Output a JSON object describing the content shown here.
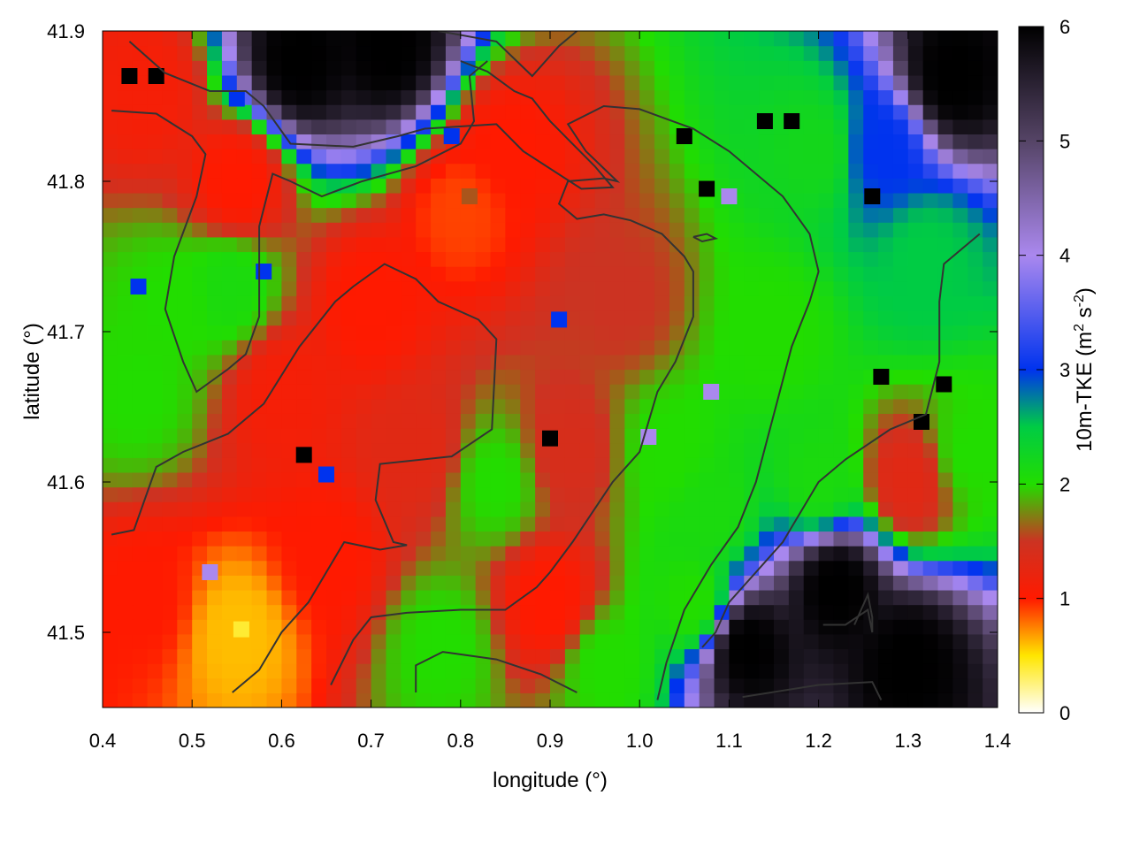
{
  "chart_data": {
    "type": "heatmap",
    "xlabel": "longitude (°)",
    "ylabel": "latitude (°)",
    "colorbar_label": "10m-TKE (m² s⁻²)",
    "colorbar_label_parts": {
      "prefix": "10m-TKE (m",
      "sup1": "2",
      "mid": " s",
      "sup2": "-2",
      "suffix": ")"
    },
    "xlim": [
      0.4,
      1.4
    ],
    "ylim": [
      41.45,
      41.9
    ],
    "zlim": [
      0,
      6
    ],
    "x_ticks": [
      "0.4",
      "0.5",
      "0.6",
      "0.7",
      "0.8",
      "0.9",
      "1.0",
      "1.1",
      "1.2",
      "1.3",
      "1.4"
    ],
    "y_ticks": [
      "41.5",
      "41.6",
      "41.7",
      "41.8",
      "41.9"
    ],
    "colorbar_ticks": [
      "0",
      "1",
      "2",
      "3",
      "4",
      "5",
      "6"
    ],
    "colormap": [
      {
        "value": 0,
        "color": "#ffffff"
      },
      {
        "value": 0.5,
        "color": "#ffe600"
      },
      {
        "value": 1.0,
        "color": "#ff1a00"
      },
      {
        "value": 1.5,
        "color": "#cc3322"
      },
      {
        "value": 2.0,
        "color": "#22dd00"
      },
      {
        "value": 2.5,
        "color": "#00cc44"
      },
      {
        "value": 3.0,
        "color": "#0033ee"
      },
      {
        "value": 4.0,
        "color": "#aa88ee"
      },
      {
        "value": 5.0,
        "color": "#554466"
      },
      {
        "value": 6.0,
        "color": "#000000"
      }
    ],
    "field_samples": [
      {
        "lon": 0.45,
        "lat": 41.86,
        "value": 1.1
      },
      {
        "lon": 0.55,
        "lat": 41.8,
        "value": 1.0
      },
      {
        "lon": 0.48,
        "lat": 41.72,
        "value": 2.0
      },
      {
        "lon": 0.54,
        "lat": 41.73,
        "value": 2.1
      },
      {
        "lon": 0.44,
        "lat": 41.66,
        "value": 2.0
      },
      {
        "lon": 0.6,
        "lat": 41.66,
        "value": 1.1
      },
      {
        "lon": 0.7,
        "lat": 41.72,
        "value": 1.0
      },
      {
        "lon": 0.8,
        "lat": 41.78,
        "value": 0.9
      },
      {
        "lon": 0.85,
        "lat": 41.82,
        "value": 1.0
      },
      {
        "lon": 0.75,
        "lat": 41.62,
        "value": 1.3
      },
      {
        "lon": 0.84,
        "lat": 41.6,
        "value": 2.0
      },
      {
        "lon": 0.92,
        "lat": 41.62,
        "value": 1.4
      },
      {
        "lon": 0.98,
        "lat": 41.72,
        "value": 1.5
      },
      {
        "lon": 1.03,
        "lat": 41.62,
        "value": 2.0
      },
      {
        "lon": 1.08,
        "lat": 41.58,
        "value": 2.1
      },
      {
        "lon": 1.15,
        "lat": 41.7,
        "value": 2.0
      },
      {
        "lon": 1.2,
        "lat": 41.82,
        "value": 2.2
      },
      {
        "lon": 1.27,
        "lat": 41.82,
        "value": 3.0
      },
      {
        "lon": 1.32,
        "lat": 41.75,
        "value": 2.5
      },
      {
        "lon": 1.35,
        "lat": 41.87,
        "value": 6.0
      },
      {
        "lon": 0.62,
        "lat": 41.88,
        "value": 6.0
      },
      {
        "lon": 0.72,
        "lat": 41.89,
        "value": 6.0
      },
      {
        "lon": 0.45,
        "lat": 41.52,
        "value": 1.0
      },
      {
        "lon": 0.55,
        "lat": 41.5,
        "value": 0.6
      },
      {
        "lon": 0.65,
        "lat": 41.55,
        "value": 1.0
      },
      {
        "lon": 0.78,
        "lat": 41.49,
        "value": 2.0
      },
      {
        "lon": 0.9,
        "lat": 41.52,
        "value": 1.0
      },
      {
        "lon": 0.96,
        "lat": 41.48,
        "value": 2.0
      },
      {
        "lon": 1.12,
        "lat": 41.49,
        "value": 6.0
      },
      {
        "lon": 1.22,
        "lat": 41.53,
        "value": 6.0
      },
      {
        "lon": 1.3,
        "lat": 41.48,
        "value": 6.0
      },
      {
        "lon": 1.3,
        "lat": 41.6,
        "value": 1.3
      },
      {
        "lon": 1.37,
        "lat": 41.62,
        "value": 2.0
      },
      {
        "lon": 1.2,
        "lat": 41.6,
        "value": 2.1
      },
      {
        "lon": 1.06,
        "lat": 41.52,
        "value": 2.0
      }
    ],
    "hotspots": [
      {
        "lon": 0.625,
        "lat": 41.618,
        "value": 6.0
      },
      {
        "lon": 0.9,
        "lat": 41.629,
        "value": 6.0
      },
      {
        "lon": 0.91,
        "lat": 41.708,
        "value": 3.0
      },
      {
        "lon": 1.075,
        "lat": 41.795,
        "value": 6.0
      },
      {
        "lon": 1.27,
        "lat": 41.67,
        "value": 6.0
      },
      {
        "lon": 1.315,
        "lat": 41.64,
        "value": 6.0
      },
      {
        "lon": 1.05,
        "lat": 41.83,
        "value": 6.0
      },
      {
        "lon": 1.34,
        "lat": 41.665,
        "value": 6.0
      },
      {
        "lon": 0.44,
        "lat": 41.73,
        "value": 3.0
      },
      {
        "lon": 0.58,
        "lat": 41.74,
        "value": 3.0
      },
      {
        "lon": 0.55,
        "lat": 41.855,
        "value": 3.0
      },
      {
        "lon": 0.79,
        "lat": 41.83,
        "value": 3.0
      },
      {
        "lon": 1.1,
        "lat": 41.79,
        "value": 4.0
      },
      {
        "lon": 1.08,
        "lat": 41.66,
        "value": 4.0
      },
      {
        "lon": 1.01,
        "lat": 41.63,
        "value": 4.0
      },
      {
        "lon": 0.52,
        "lat": 41.54,
        "value": 4.0
      },
      {
        "lon": 0.43,
        "lat": 41.87,
        "value": 6.0
      },
      {
        "lon": 0.46,
        "lat": 41.87,
        "value": 6.0
      },
      {
        "lon": 1.14,
        "lat": 41.84,
        "value": 6.0
      },
      {
        "lon": 1.17,
        "lat": 41.84,
        "value": 6.0
      },
      {
        "lon": 1.26,
        "lat": 41.79,
        "value": 6.0
      },
      {
        "lon": 0.555,
        "lat": 41.502,
        "value": 0.4
      },
      {
        "lon": 0.81,
        "lat": 41.79,
        "value": 1.6
      },
      {
        "lon": 0.65,
        "lat": 41.605,
        "value": 3.0
      }
    ],
    "contours": [
      [
        [
          0.41,
          41.565
        ],
        [
          0.435,
          41.568
        ],
        [
          0.46,
          41.61
        ],
        [
          0.49,
          41.62
        ],
        [
          0.54,
          41.632
        ],
        [
          0.58,
          41.652
        ],
        [
          0.62,
          41.69
        ],
        [
          0.66,
          41.72
        ],
        [
          0.68,
          41.73
        ],
        [
          0.715,
          41.745
        ],
        [
          0.75,
          41.735
        ],
        [
          0.775,
          41.72
        ],
        [
          0.82,
          41.708
        ],
        [
          0.84,
          41.695
        ],
        [
          0.835,
          41.635
        ],
        [
          0.79,
          41.617
        ],
        [
          0.71,
          41.612
        ],
        [
          0.705,
          41.588
        ],
        [
          0.725,
          41.56
        ],
        [
          0.74,
          41.558
        ],
        [
          0.71,
          41.555
        ],
        [
          0.67,
          41.56
        ],
        [
          0.63,
          41.52
        ],
        [
          0.6,
          41.5
        ],
        [
          0.575,
          41.475
        ],
        [
          0.545,
          41.46
        ]
      ],
      [
        [
          0.41,
          41.847
        ],
        [
          0.46,
          41.845
        ],
        [
          0.5,
          41.83
        ],
        [
          0.515,
          41.818
        ],
        [
          0.505,
          41.79
        ],
        [
          0.48,
          41.75
        ],
        [
          0.47,
          41.715
        ],
        [
          0.49,
          41.68
        ],
        [
          0.505,
          41.66
        ],
        [
          0.54,
          41.675
        ],
        [
          0.56,
          41.685
        ],
        [
          0.575,
          41.71
        ],
        [
          0.575,
          41.77
        ],
        [
          0.59,
          41.805
        ],
        [
          0.61,
          41.8
        ],
        [
          0.645,
          41.79
        ],
        [
          0.69,
          41.8
        ],
        [
          0.75,
          41.81
        ],
        [
          0.8,
          41.825
        ],
        [
          0.815,
          41.84
        ],
        [
          0.81,
          41.87
        ],
        [
          0.83,
          41.88
        ]
      ],
      [
        [
          0.43,
          41.893
        ],
        [
          0.47,
          41.872
        ],
        [
          0.52,
          41.86
        ],
        [
          0.56,
          41.86
        ],
        [
          0.58,
          41.85
        ],
        [
          0.61,
          41.825
        ],
        [
          0.68,
          41.823
        ],
        [
          0.73,
          41.83
        ],
        [
          0.76,
          41.835
        ],
        [
          0.84,
          41.838
        ],
        [
          0.87,
          41.82
        ],
        [
          0.935,
          41.795
        ],
        [
          0.97,
          41.796
        ],
        [
          0.95,
          41.81
        ],
        [
          0.92,
          41.828
        ],
        [
          0.9,
          41.84
        ],
        [
          0.88,
          41.855
        ],
        [
          0.86,
          41.86
        ],
        [
          0.83,
          41.873
        ],
        [
          0.8,
          41.88
        ]
      ],
      [
        [
          0.75,
          41.46
        ],
        [
          0.75,
          41.478
        ],
        [
          0.78,
          41.487
        ],
        [
          0.84,
          41.482
        ],
        [
          0.89,
          41.472
        ],
        [
          0.93,
          41.46
        ]
      ],
      [
        [
          0.655,
          41.465
        ],
        [
          0.68,
          41.495
        ],
        [
          0.7,
          41.51
        ],
        [
          0.74,
          41.513
        ],
        [
          0.8,
          41.515
        ],
        [
          0.85,
          41.515
        ],
        [
          0.885,
          41.53
        ],
        [
          0.9,
          41.54
        ],
        [
          0.925,
          41.56
        ],
        [
          0.97,
          41.6
        ],
        [
          1.0,
          41.62
        ],
        [
          1.02,
          41.66
        ],
        [
          1.04,
          41.68
        ],
        [
          1.06,
          41.71
        ],
        [
          1.06,
          41.74
        ],
        [
          1.05,
          41.75
        ],
        [
          1.025,
          41.765
        ],
        [
          0.99,
          41.774
        ],
        [
          0.96,
          41.778
        ],
        [
          0.93,
          41.775
        ],
        [
          0.91,
          41.785
        ],
        [
          0.92,
          41.8
        ],
        [
          0.96,
          41.802
        ],
        [
          0.975,
          41.8
        ],
        [
          0.94,
          41.82
        ],
        [
          0.92,
          41.838
        ],
        [
          0.96,
          41.85
        ],
        [
          1.0,
          41.848
        ],
        [
          1.06,
          41.835
        ],
        [
          1.1,
          41.82
        ],
        [
          1.16,
          41.79
        ],
        [
          1.19,
          41.765
        ],
        [
          1.2,
          41.74
        ],
        [
          1.19,
          41.72
        ],
        [
          1.17,
          41.69
        ],
        [
          1.15,
          41.645
        ],
        [
          1.13,
          41.6
        ],
        [
          1.11,
          41.57
        ],
        [
          1.08,
          41.545
        ],
        [
          1.05,
          41.515
        ],
        [
          1.03,
          41.48
        ],
        [
          1.02,
          41.455
        ]
      ],
      [
        [
          1.07,
          41.49
        ],
        [
          1.085,
          41.5
        ],
        [
          1.1,
          41.52
        ],
        [
          1.13,
          41.54
        ],
        [
          1.16,
          41.56
        ],
        [
          1.2,
          41.6
        ],
        [
          1.23,
          41.615
        ],
        [
          1.28,
          41.635
        ],
        [
          1.32,
          41.645
        ],
        [
          1.335,
          41.68
        ],
        [
          1.335,
          41.72
        ],
        [
          1.34,
          41.745
        ],
        [
          1.36,
          41.755
        ],
        [
          1.38,
          41.765
        ]
      ],
      [
        [
          1.06,
          41.763
        ],
        [
          1.075,
          41.765
        ],
        [
          1.085,
          41.762
        ],
        [
          1.07,
          41.76
        ],
        [
          1.06,
          41.763
        ]
      ],
      [
        [
          1.205,
          41.505
        ],
        [
          1.23,
          41.505
        ],
        [
          1.255,
          41.515
        ],
        [
          1.26,
          41.5
        ],
        [
          1.26,
          41.51
        ],
        [
          1.255,
          41.525
        ],
        [
          1.24,
          41.505
        ]
      ],
      [
        [
          1.115,
          41.457
        ],
        [
          1.2,
          41.465
        ],
        [
          1.26,
          41.467
        ],
        [
          1.27,
          41.455
        ]
      ],
      [
        [
          0.775,
          41.9
        ],
        [
          0.84,
          41.893
        ],
        [
          0.88,
          41.87
        ],
        [
          0.91,
          41.89
        ],
        [
          0.93,
          41.9
        ]
      ]
    ]
  }
}
